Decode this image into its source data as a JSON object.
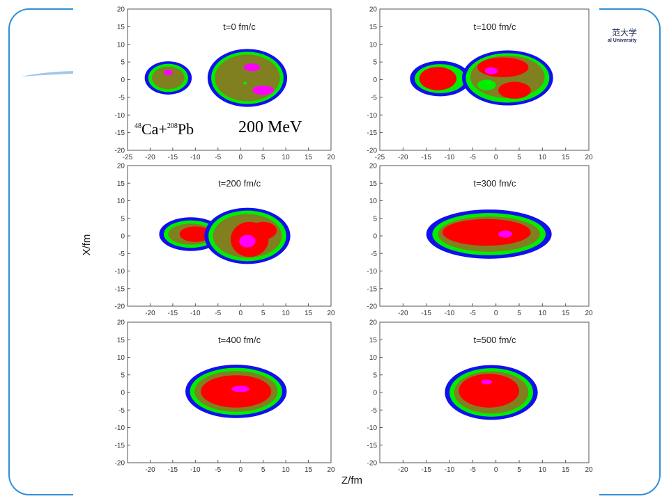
{
  "slide": {
    "logo_cn": "范大学",
    "logo_en": "al University",
    "colors": {
      "frame": "#2f8fd8",
      "density_levels": [
        "#1010ee",
        "#00ee00",
        "#808020",
        "#ff0000",
        "#ff00ff"
      ]
    }
  },
  "chart_data": {
    "type": "contour",
    "xlabel": "Z/fm",
    "ylabel": "X/fm",
    "xlim": [
      -25,
      20
    ],
    "ylim": [
      -20,
      20
    ],
    "x_ticks": [
      -25,
      -20,
      -15,
      -10,
      -5,
      0,
      5,
      10,
      15,
      20
    ],
    "y_ticks": [
      -20,
      -15,
      -10,
      -5,
      0,
      5,
      10,
      15,
      20
    ],
    "annotations": {
      "reaction": {
        "mass_projectile": "48",
        "projectile": "Ca+",
        "mass_target": "208",
        "target": "Pb"
      },
      "energy": "200 MeV"
    },
    "panels": [
      {
        "title": "t=0 fm/c",
        "x_ticks": [
          -25,
          -20,
          -15,
          -10,
          -5,
          0,
          5,
          10,
          15,
          20
        ],
        "blobs": [
          {
            "cx": -16,
            "cy": 0.5,
            "rx": 5.2,
            "ry": 4.7,
            "level": 0
          },
          {
            "cx": -16,
            "cy": 0.5,
            "rx": 4.4,
            "ry": 4.0,
            "level": 1
          },
          {
            "cx": -16,
            "cy": 0.5,
            "rx": 3.6,
            "ry": 3.2,
            "level": 2
          },
          {
            "cx": -16,
            "cy": 2.0,
            "rx": 1.0,
            "ry": 0.8,
            "level": 4
          },
          {
            "cx": 1.5,
            "cy": 0.5,
            "rx": 8.8,
            "ry": 8.2,
            "level": 0
          },
          {
            "cx": 1.5,
            "cy": 0.5,
            "rx": 8.0,
            "ry": 7.4,
            "level": 1
          },
          {
            "cx": 1.5,
            "cy": 0.5,
            "rx": 7.2,
            "ry": 6.6,
            "level": 2
          },
          {
            "cx": 2.5,
            "cy": 3.5,
            "rx": 1.8,
            "ry": 1.1,
            "level": 4
          },
          {
            "cx": 5.0,
            "cy": -3.0,
            "rx": 2.4,
            "ry": 1.3,
            "level": 4
          },
          {
            "cx": 1.0,
            "cy": -1.0,
            "rx": 0.4,
            "ry": 0.4,
            "level": 1
          }
        ]
      },
      {
        "title": "t=100 fm/c",
        "x_ticks": [
          -25,
          -20,
          -15,
          -10,
          -5,
          0,
          5,
          10,
          15,
          20
        ],
        "blobs": [
          {
            "cx": -12,
            "cy": 0.3,
            "rx": 6.5,
            "ry": 5.0,
            "level": 0
          },
          {
            "cx": -12,
            "cy": 0.3,
            "rx": 5.5,
            "ry": 4.1,
            "level": 1
          },
          {
            "cx": -12.5,
            "cy": 0.3,
            "rx": 4.0,
            "ry": 3.3,
            "level": 3
          },
          {
            "cx": 2.5,
            "cy": 0.5,
            "rx": 9.8,
            "ry": 7.8,
            "level": 0
          },
          {
            "cx": 2.5,
            "cy": 0.5,
            "rx": 9.0,
            "ry": 7.0,
            "level": 1
          },
          {
            "cx": 2.5,
            "cy": 0.8,
            "rx": 8.0,
            "ry": 6.0,
            "level": 2
          },
          {
            "cx": 1.5,
            "cy": 3.5,
            "rx": 5.5,
            "ry": 2.8,
            "level": 3
          },
          {
            "cx": 4.0,
            "cy": -3.0,
            "rx": 3.5,
            "ry": 2.4,
            "level": 3
          },
          {
            "cx": -1.0,
            "cy": 2.5,
            "rx": 1.4,
            "ry": 1.0,
            "level": 4
          },
          {
            "cx": -2.0,
            "cy": -1.5,
            "rx": 2.0,
            "ry": 1.5,
            "level": 1
          }
        ]
      },
      {
        "title": "t=200 fm/c",
        "x_ticks": [
          -20,
          -15,
          -10,
          -5,
          0,
          5,
          10,
          15,
          20
        ],
        "blobs": [
          {
            "cx": -11,
            "cy": 0.5,
            "rx": 7.0,
            "ry": 4.8,
            "level": 0
          },
          {
            "cx": -11,
            "cy": 0.5,
            "rx": 6.0,
            "ry": 3.9,
            "level": 1
          },
          {
            "cx": -11,
            "cy": 0.5,
            "rx": 5.0,
            "ry": 3.0,
            "level": 2
          },
          {
            "cx": -10,
            "cy": 0.5,
            "rx": 3.5,
            "ry": 2.2,
            "level": 3
          },
          {
            "cx": 1.5,
            "cy": 0.0,
            "rx": 9.5,
            "ry": 8.0,
            "level": 0
          },
          {
            "cx": 1.5,
            "cy": 0.0,
            "rx": 8.6,
            "ry": 7.2,
            "level": 1
          },
          {
            "cx": 1.5,
            "cy": 0.0,
            "rx": 7.6,
            "ry": 6.2,
            "level": 2
          },
          {
            "cx": 2.0,
            "cy": -1.0,
            "rx": 4.2,
            "ry": 5.0,
            "level": 3
          },
          {
            "cx": 5.0,
            "cy": 1.5,
            "rx": 3.0,
            "ry": 2.5,
            "level": 3
          },
          {
            "cx": 1.5,
            "cy": -1.5,
            "rx": 1.8,
            "ry": 1.8,
            "level": 4
          }
        ]
      },
      {
        "title": "t=300 fm/c",
        "x_ticks": [
          -20,
          -15,
          -10,
          -5,
          0,
          5,
          10,
          15,
          20
        ],
        "blobs": [
          {
            "cx": -1.5,
            "cy": 0.5,
            "rx": 13.5,
            "ry": 7.0,
            "level": 0
          },
          {
            "cx": -1.5,
            "cy": 0.5,
            "rx": 12.2,
            "ry": 6.0,
            "level": 1
          },
          {
            "cx": -1.5,
            "cy": 0.5,
            "rx": 11.0,
            "ry": 5.0,
            "level": 2
          },
          {
            "cx": -2.0,
            "cy": 1.0,
            "rx": 9.5,
            "ry": 3.8,
            "level": 3
          },
          {
            "cx": 2.0,
            "cy": 0.5,
            "rx": 1.5,
            "ry": 1.0,
            "level": 4
          }
        ]
      },
      {
        "title": "t=400 fm/c",
        "x_ticks": [
          -20,
          -15,
          -10,
          -5,
          0,
          5,
          10,
          15,
          20
        ],
        "blobs": [
          {
            "cx": -1.0,
            "cy": 0.3,
            "rx": 11.2,
            "ry": 7.6,
            "level": 0
          },
          {
            "cx": -1.0,
            "cy": 0.3,
            "rx": 10.2,
            "ry": 6.7,
            "level": 1
          },
          {
            "cx": -1.0,
            "cy": 0.3,
            "rx": 9.2,
            "ry": 5.8,
            "level": 2
          },
          {
            "cx": -1.0,
            "cy": 0.3,
            "rx": 7.8,
            "ry": 4.6,
            "level": 3
          },
          {
            "cx": 0.0,
            "cy": 1.0,
            "rx": 2.0,
            "ry": 0.9,
            "level": 4
          }
        ]
      },
      {
        "title": "t=500 fm/c",
        "x_ticks": [
          -20,
          -15,
          -10,
          -5,
          0,
          5,
          10,
          15,
          20
        ],
        "blobs": [
          {
            "cx": -1.0,
            "cy": 0.0,
            "rx": 10.0,
            "ry": 7.8,
            "level": 0
          },
          {
            "cx": -1.0,
            "cy": 0.0,
            "rx": 9.0,
            "ry": 6.9,
            "level": 1
          },
          {
            "cx": -1.0,
            "cy": 0.0,
            "rx": 8.0,
            "ry": 6.0,
            "level": 2
          },
          {
            "cx": -1.5,
            "cy": 0.5,
            "rx": 6.5,
            "ry": 4.8,
            "level": 3
          },
          {
            "cx": -2.0,
            "cy": 3.0,
            "rx": 1.2,
            "ry": 0.7,
            "level": 4
          }
        ]
      }
    ]
  }
}
